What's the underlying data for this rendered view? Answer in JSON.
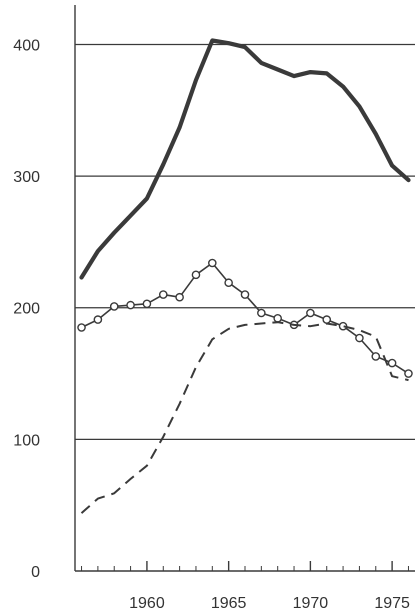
{
  "chart_data": {
    "type": "line",
    "title": "",
    "xlabel": "",
    "ylabel": "",
    "xlim": [
      1955.6,
      1976.4
    ],
    "ylim": [
      0,
      430
    ],
    "x_ticks": [
      1960,
      1965,
      1970,
      1975
    ],
    "x_tick_labels": [
      "1960",
      "1965",
      "1970",
      "1975"
    ],
    "y_ticks": [
      0,
      100,
      200,
      300,
      400
    ],
    "y_tick_labels": [
      "0",
      "100",
      "200",
      "300",
      "400"
    ],
    "grid": "horizontal",
    "legend": "none",
    "colors": {
      "solid_line": "#3a3a3a",
      "marker_line": "#3a3a3a",
      "dashed_line": "#3a3a3a",
      "grid": "#3a3a3a"
    },
    "series": [
      {
        "style": "solid-thick",
        "x": [
          1956,
          1957,
          1958,
          1959,
          1960,
          1961,
          1962,
          1963,
          1964,
          1965,
          1966,
          1967,
          1968,
          1969,
          1970,
          1971,
          1972,
          1973,
          1974,
          1975,
          1976
        ],
        "values": [
          223,
          243,
          257,
          270,
          283,
          309,
          337,
          373,
          403,
          401,
          398,
          386,
          381,
          376,
          379,
          378,
          368,
          353,
          332,
          308,
          297
        ]
      },
      {
        "style": "solid-with-circle-markers",
        "x": [
          1956,
          1957,
          1958,
          1959,
          1960,
          1961,
          1962,
          1963,
          1964,
          1965,
          1966,
          1967,
          1968,
          1969,
          1970,
          1971,
          1972,
          1973,
          1974,
          1975,
          1976
        ],
        "values": [
          185,
          191,
          201,
          202,
          203,
          210,
          208,
          225,
          234,
          219,
          210,
          196,
          192,
          187,
          196,
          191,
          186,
          177,
          163,
          158,
          150
        ]
      },
      {
        "style": "dashed",
        "x": [
          1956,
          1957,
          1958,
          1959,
          1960,
          1961,
          1962,
          1963,
          1964,
          1965,
          1966,
          1967,
          1968,
          1969,
          1970,
          1971,
          1972,
          1973,
          1974,
          1975,
          1976
        ],
        "values": [
          44,
          55,
          59,
          70,
          80,
          102,
          127,
          155,
          176,
          184,
          187,
          188,
          189,
          187,
          186,
          188,
          186,
          183,
          178,
          148,
          145
        ]
      }
    ]
  }
}
